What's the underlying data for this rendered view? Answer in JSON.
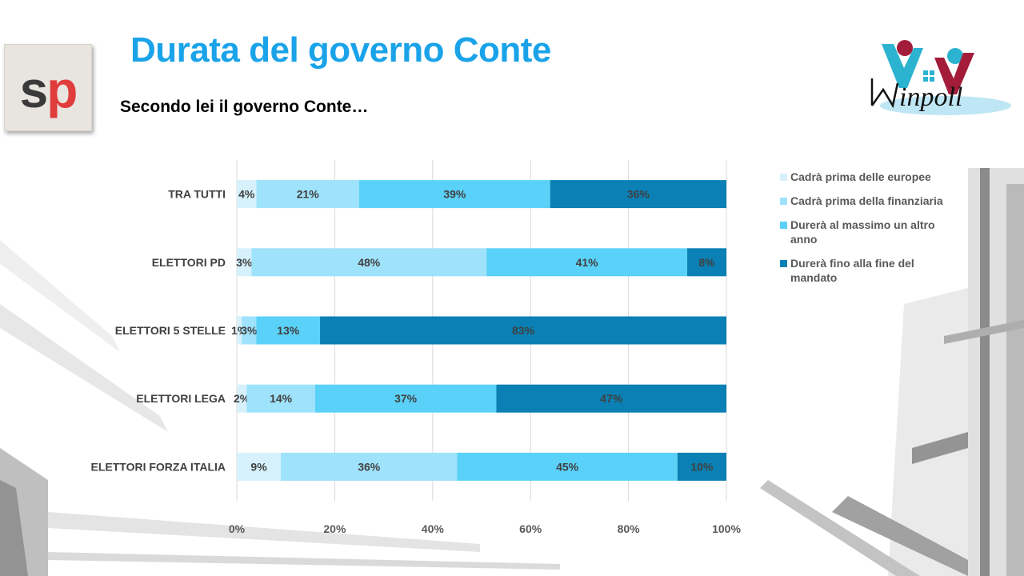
{
  "header": {
    "title": "Durata del governo Conte",
    "subtitle": "Secondo lei il governo Conte…"
  },
  "logos": {
    "left": "sp",
    "right": "winpoll"
  },
  "colors": {
    "title": "#1aa3e8",
    "series": [
      "#d6f1fb",
      "#9fe2fb",
      "#5ad1f8",
      "#0a80b4"
    ]
  },
  "chart_data": {
    "type": "bar",
    "orientation": "horizontal",
    "stacked": true,
    "categories": [
      "TRA TUTTI",
      "ELETTORI PD",
      "ELETTORI 5 STELLE",
      "ELETTORI LEGA",
      "ELETTORI FORZA ITALIA"
    ],
    "series": [
      {
        "name": "Cadrà prima delle europee",
        "values": [
          4,
          3,
          1,
          2,
          9
        ]
      },
      {
        "name": "Cadrà prima della finanziaria",
        "values": [
          21,
          48,
          3,
          14,
          36
        ]
      },
      {
        "name": "Durerà al massimo un altro anno",
        "values": [
          39,
          41,
          13,
          37,
          45
        ]
      },
      {
        "name": "Durerà fino alla fine del mandato",
        "values": [
          36,
          8,
          83,
          47,
          10
        ]
      }
    ],
    "xlim": [
      0,
      100
    ],
    "xticks": [
      "0%",
      "20%",
      "40%",
      "60%",
      "80%",
      "100%"
    ],
    "grid": true,
    "legend": "right",
    "data_label_suffix": "%"
  }
}
